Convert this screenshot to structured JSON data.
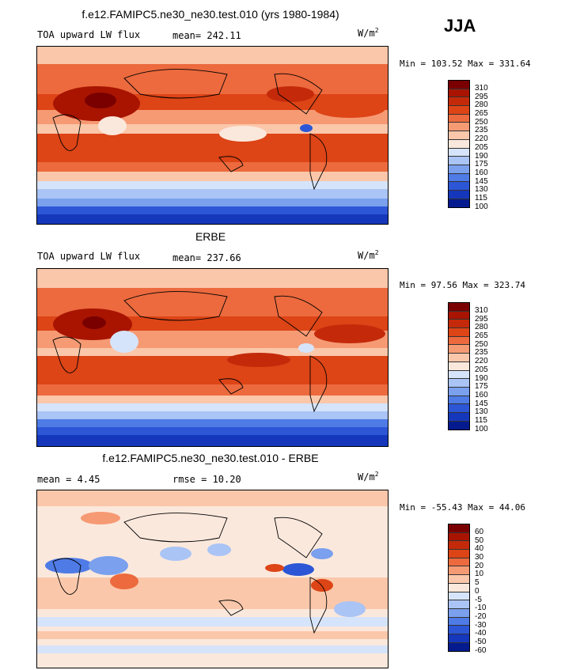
{
  "season": "JJA",
  "panels": [
    {
      "title": "f.e12.FAMIPC5.ne30_ne30.test.010 (yrs 1980-1984)",
      "field": "TOA upward LW flux",
      "stat": "mean=  242.11",
      "stat2": "",
      "units": "W/m",
      "units_exp": "2",
      "minmax": "Min = 103.52 Max = 331.64",
      "levels": [
        "310",
        "295",
        "280",
        "265",
        "250",
        "235",
        "220",
        "205",
        "190",
        "175",
        "160",
        "145",
        "130",
        "115",
        "100"
      ]
    },
    {
      "title": "ERBE",
      "field": "TOA upward LW flux",
      "stat": "mean=  237.66",
      "stat2": "",
      "units": "W/m",
      "units_exp": "2",
      "minmax": "Min =  97.56 Max = 323.74",
      "levels": [
        "310",
        "295",
        "280",
        "265",
        "250",
        "235",
        "220",
        "205",
        "190",
        "175",
        "160",
        "145",
        "130",
        "115",
        "100"
      ]
    },
    {
      "title": "f.e12.FAMIPC5.ne30_ne30.test.010 - ERBE",
      "field": "mean =   4.45",
      "stat": "rmse =  10.20",
      "stat2": "",
      "units": "W/m",
      "units_exp": "2",
      "minmax": "Min = -55.43 Max =  44.06",
      "levels": [
        "60",
        "50",
        "40",
        "30",
        "20",
        "10",
        "5",
        "0",
        "-5",
        "-10",
        "-20",
        "-30",
        "-40",
        "-50",
        "-60"
      ]
    }
  ],
  "palette": [
    "#7a0000",
    "#a81400",
    "#c42a0a",
    "#dd4416",
    "#ec6a3e",
    "#f69a74",
    "#fbc7aa",
    "#fbe8dc",
    "#d6e4fb",
    "#a9c4f5",
    "#7aa0ee",
    "#4f7be6",
    "#2c56d6",
    "#1537bb",
    "#041b8f"
  ]
}
